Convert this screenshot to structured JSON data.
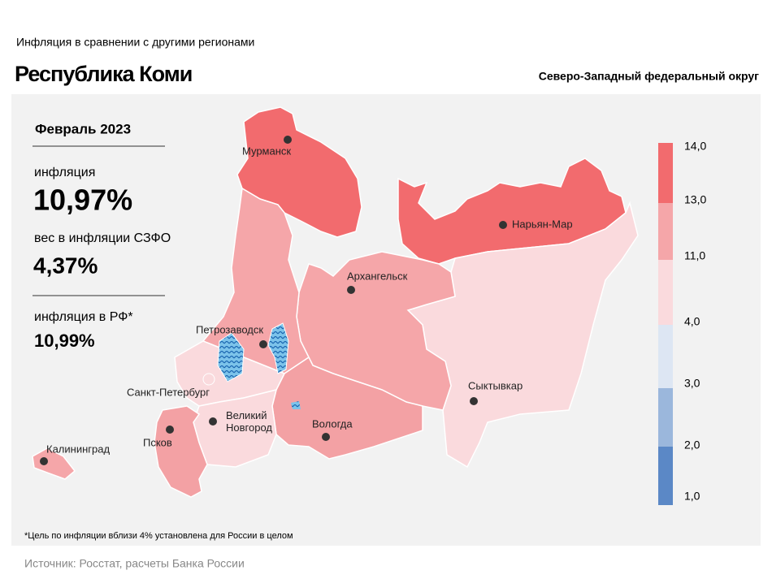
{
  "header": {
    "subtitle": "Инфляция в сравнении с другими регионами",
    "title": "Республика Коми",
    "district": "Северо-Западный федеральный округ"
  },
  "panel": {
    "period": "Февраль 2023",
    "inflation_label": "инфляция",
    "inflation_value": "10,97%",
    "weight_label": "вес в инфляции СЗФО",
    "weight_value": "4,37%",
    "russia_label": "инфляция в РФ*",
    "russia_value": "10,99%"
  },
  "legend": {
    "labels": [
      "14,0",
      "13,0",
      "11,0",
      "4,0",
      "3,0",
      "2,0",
      "1,0"
    ],
    "colors": [
      "#f26b6e",
      "#f5a6a9",
      "#fadadd",
      "#dde6f3",
      "#9bb7dc",
      "#5b88c6"
    ]
  },
  "cities": [
    "Мурманск",
    "Нарьян-Мар",
    "Архангельск",
    "Петрозаводск",
    "Сыктывкар",
    "Санкт-Петербург",
    "Великий\nНовгород",
    "Вологда",
    "Псков",
    "Калининград"
  ],
  "footnote": "*Цель по инфляции вблизи 4% установлена для России в целом",
  "source": "Источник: Росстат, расчеты Банка России"
}
